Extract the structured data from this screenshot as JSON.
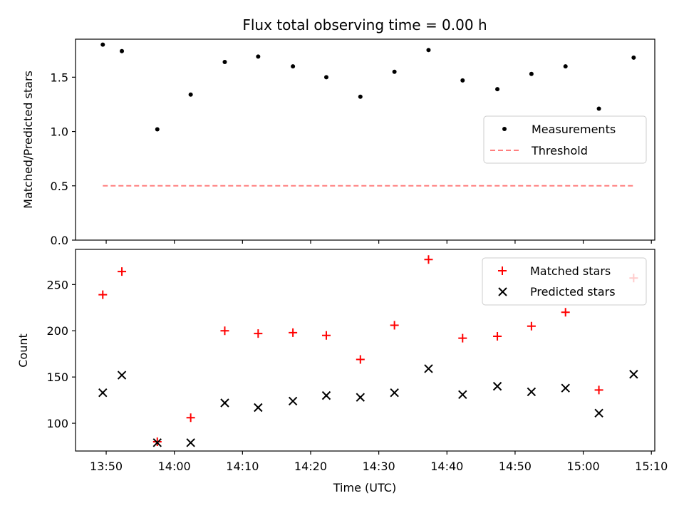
{
  "chart_data": [
    {
      "type": "scatter",
      "title": "Flux total observing time = 0.00 h",
      "xlabel": "",
      "ylabel": "Matched/Predicted stars",
      "x_minutes": [
        829.5,
        832.3,
        837.5,
        842.4,
        847.4,
        852.3,
        857.4,
        862.3,
        867.3,
        872.3,
        877.3,
        882.3,
        887.4,
        892.4,
        897.4,
        902.3,
        907.4
      ],
      "xlim": [
        825.5,
        910.5
      ],
      "ylim": [
        0,
        1.85
      ],
      "yticks": [
        0.0,
        0.5,
        1.0,
        1.5
      ],
      "ytick_labels": [
        "0.0",
        "0.5",
        "1.0",
        "1.5"
      ],
      "series": [
        {
          "name": "Measurements",
          "marker": "dot",
          "color": "#000000",
          "values": [
            1.8,
            1.74,
            1.02,
            1.34,
            1.64,
            1.69,
            1.6,
            1.5,
            1.32,
            1.55,
            1.75,
            1.47,
            1.39,
            1.53,
            1.6,
            1.21,
            1.68
          ]
        },
        {
          "name": "Threshold",
          "marker": "dashed-line",
          "color": "#ff7f7f",
          "x_range": [
            829.5,
            907.4
          ],
          "value": 0.5
        }
      ],
      "legend": {
        "position": "center-right",
        "entries": [
          "Measurements",
          "Threshold"
        ]
      }
    },
    {
      "type": "scatter",
      "title": "",
      "xlabel": "Time (UTC)",
      "ylabel": "Count",
      "xlim": [
        825.5,
        910.5
      ],
      "xticks": [
        830,
        840,
        850,
        860,
        870,
        880,
        890,
        900,
        910
      ],
      "xtick_labels": [
        "13:50",
        "14:00",
        "14:10",
        "14:20",
        "14:30",
        "14:40",
        "14:50",
        "15:00",
        "15:10"
      ],
      "ylim": [
        70,
        288
      ],
      "yticks": [
        100,
        150,
        200,
        250
      ],
      "ytick_labels": [
        "100",
        "150",
        "200",
        "250"
      ],
      "series": [
        {
          "name": "Matched stars",
          "marker": "plus",
          "color": "#ff0000",
          "values": [
            239,
            264,
            80,
            106,
            200,
            197,
            198,
            195,
            169,
            206,
            277,
            192,
            194,
            205,
            220,
            136,
            257
          ]
        },
        {
          "name": "Predicted stars",
          "marker": "x",
          "color": "#000000",
          "values": [
            133,
            152,
            79,
            79,
            122,
            117,
            124,
            130,
            128,
            133,
            159,
            131,
            140,
            134,
            138,
            111,
            153
          ]
        }
      ],
      "legend": {
        "position": "top-right",
        "entries": [
          "Matched stars",
          "Predicted stars"
        ]
      }
    }
  ]
}
